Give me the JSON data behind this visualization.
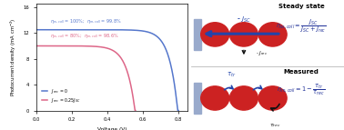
{
  "blue_jsc": 12.5,
  "pink_jsc": 10.0,
  "blue_voc": 0.795,
  "pink_voc": 0.555,
  "blue_color": "#5577cc",
  "pink_color": "#dd6688",
  "blue_label": "$J_{rec}$ = 0",
  "pink_label": "$J_{rec}$ = 0.25$J_{SC}$",
  "blue_annotation": "$\\eta_{ss,coll}$ = 100%;  $\\eta_{m,coll}$ = 99.8%",
  "pink_annotation": "$\\eta_{ss,coll}$ = 80%;  $\\eta_{m,coll}$ = 98.6%",
  "xlabel": "Voltage (V)",
  "ylabel": "Photocurrent density (mA cm$^{-2}$)",
  "xlim": [
    0.0,
    0.85
  ],
  "ylim": [
    0.0,
    16.5
  ],
  "yticks": [
    0,
    4,
    8,
    12,
    16
  ],
  "xticks": [
    0.0,
    0.2,
    0.4,
    0.6,
    0.8
  ],
  "bg_color": "#ffffff",
  "steady_state_title": "Steady state",
  "measured_title": "Measured",
  "blue_rect_color": "#99aacc",
  "red_circle_color": "#cc2222",
  "arrow_blue": "#2244aa",
  "arrow_black": "#111111"
}
